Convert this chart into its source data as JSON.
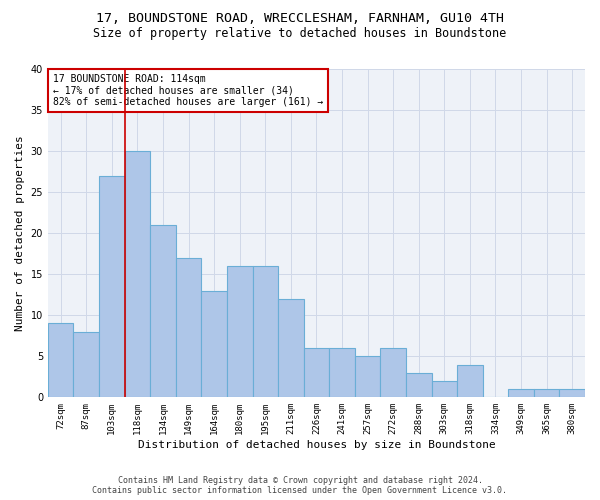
{
  "title1": "17, BOUNDSTONE ROAD, WRECCLESHAM, FARNHAM, GU10 4TH",
  "title2": "Size of property relative to detached houses in Boundstone",
  "xlabel": "Distribution of detached houses by size in Boundstone",
  "ylabel": "Number of detached properties",
  "categories": [
    "72sqm",
    "87sqm",
    "103sqm",
    "118sqm",
    "134sqm",
    "149sqm",
    "164sqm",
    "180sqm",
    "195sqm",
    "211sqm",
    "226sqm",
    "241sqm",
    "257sqm",
    "272sqm",
    "288sqm",
    "303sqm",
    "318sqm",
    "334sqm",
    "349sqm",
    "365sqm",
    "380sqm"
  ],
  "values": [
    9,
    8,
    27,
    30,
    21,
    17,
    13,
    16,
    16,
    12,
    6,
    6,
    5,
    6,
    3,
    2,
    4,
    0,
    1,
    1,
    1
  ],
  "bar_color": "#aec6e8",
  "bar_edge_color": "#6aaed6",
  "bar_linewidth": 0.8,
  "annotation_line1": "17 BOUNDSTONE ROAD: 114sqm",
  "annotation_line2": "← 17% of detached houses are smaller (34)",
  "annotation_line3": "82% of semi-detached houses are larger (161) →",
  "annotation_box_color": "#ffffff",
  "annotation_box_edge_color": "#cc0000",
  "vline_color": "#cc0000",
  "vline_linewidth": 1.2,
  "vline_xindex": 2.5,
  "ylim": [
    0,
    40
  ],
  "yticks": [
    0,
    5,
    10,
    15,
    20,
    25,
    30,
    35,
    40
  ],
  "grid_color": "#d0d8e8",
  "bg_color": "#eef2f8",
  "footer1": "Contains HM Land Registry data © Crown copyright and database right 2024.",
  "footer2": "Contains public sector information licensed under the Open Government Licence v3.0.",
  "title_fontsize": 9.5,
  "subtitle_fontsize": 8.5,
  "tick_fontsize": 6.5,
  "ylabel_fontsize": 8,
  "xlabel_fontsize": 8,
  "annotation_fontsize": 7,
  "footer_fontsize": 6
}
